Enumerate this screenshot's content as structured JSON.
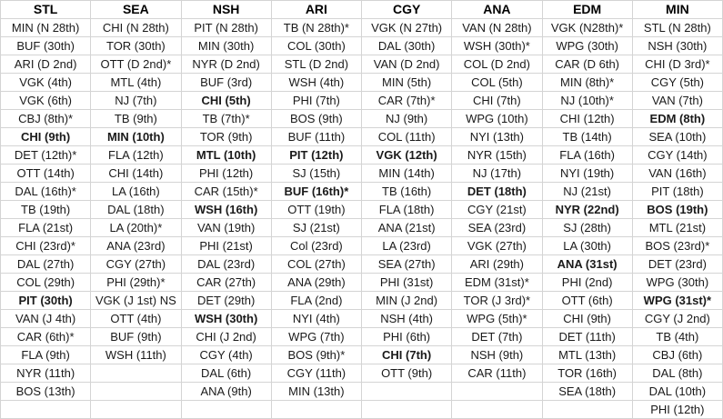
{
  "colors": {
    "red": "#f42a33",
    "green": "#1ea35d",
    "black_text": "#1a1a1a",
    "gridline": "#d4d4d4",
    "header_text": "#000000",
    "background": "#ffffff"
  },
  "table": {
    "columns": [
      {
        "header": "STL",
        "cells": [
          {
            "t": "MIN (N 28th)",
            "s": "r"
          },
          {
            "t": "BUF (30th)",
            "s": "k"
          },
          {
            "t": "ARI (D 2nd)",
            "s": "r"
          },
          {
            "t": "VGK (4th)",
            "s": "r"
          },
          {
            "t": "VGK (6th)",
            "s": "k"
          },
          {
            "t": "CBJ (8th)*",
            "s": "r"
          },
          {
            "t": "CHI (9th)",
            "s": "rb"
          },
          {
            "t": "DET (12th)*",
            "s": "k"
          },
          {
            "t": "OTT (14th)",
            "s": "k"
          },
          {
            "t": "DAL (16th)*",
            "s": "k"
          },
          {
            "t": "TB (19th)",
            "s": "r"
          },
          {
            "t": "FLA (21st)",
            "s": "r"
          },
          {
            "t": "CHI (23rd)*",
            "s": "k"
          },
          {
            "t": "DAL (27th)",
            "s": "k"
          },
          {
            "t": "COL (29th)",
            "s": "k"
          },
          {
            "t": "PIT (30th)",
            "s": "rb"
          },
          {
            "t": "VAN (J 4th)",
            "s": "k"
          },
          {
            "t": "CAR (6th)*",
            "s": "r"
          },
          {
            "t": "FLA (9th)",
            "s": "k"
          },
          {
            "t": "NYR (11th)",
            "s": "k"
          },
          {
            "t": "BOS (13th)",
            "s": "k"
          },
          {
            "t": "",
            "s": ""
          }
        ]
      },
      {
        "header": "SEA",
        "cells": [
          {
            "t": "CHI (N 28th)",
            "s": "r"
          },
          {
            "t": "TOR (30th)",
            "s": "r"
          },
          {
            "t": "OTT (D 2nd)*",
            "s": "r"
          },
          {
            "t": "MTL (4th)",
            "s": "r"
          },
          {
            "t": "NJ (7th)",
            "s": "k"
          },
          {
            "t": "TB (9th)",
            "s": "k"
          },
          {
            "t": "MIN (10th)",
            "s": "kb"
          },
          {
            "t": "FLA (12th)",
            "s": "k"
          },
          {
            "t": "CHI (14th)",
            "s": "k"
          },
          {
            "t": "LA (16th)",
            "s": "k"
          },
          {
            "t": "DAL (18th)",
            "s": "r"
          },
          {
            "t": "LA (20th)*",
            "s": "r"
          },
          {
            "t": "ANA (23rd)",
            "s": "r"
          },
          {
            "t": "CGY (27th)",
            "s": "r"
          },
          {
            "t": "PHI (29th)*",
            "s": "k"
          },
          {
            "t": "VGK (J 1st) NS",
            "s": "g"
          },
          {
            "t": "OTT (4th)",
            "s": "k"
          },
          {
            "t": "BUF (9th)",
            "s": "r"
          },
          {
            "t": "WSH (11th)",
            "s": "r"
          },
          {
            "t": "",
            "s": ""
          },
          {
            "t": "",
            "s": ""
          },
          {
            "t": "",
            "s": ""
          }
        ]
      },
      {
        "header": "NSH",
        "cells": [
          {
            "t": "PIT (N 28th)",
            "s": "k"
          },
          {
            "t": "MIN (30th)",
            "s": "k"
          },
          {
            "t": "NYR (D 2nd)",
            "s": "k"
          },
          {
            "t": "BUF (3rd)",
            "s": "r"
          },
          {
            "t": "CHI (5th)",
            "s": "rb"
          },
          {
            "t": "TB (7th)*",
            "s": "k"
          },
          {
            "t": "TOR (9th)",
            "s": "r"
          },
          {
            "t": "MTL (10th)",
            "s": "rb"
          },
          {
            "t": "PHI (12th)",
            "s": "k"
          },
          {
            "t": "CAR (15th)*",
            "s": "r"
          },
          {
            "t": "WSH (16th)",
            "s": "kb"
          },
          {
            "t": "VAN (19th)",
            "s": "k"
          },
          {
            "t": "PHI (21st)",
            "s": "r"
          },
          {
            "t": "DAL (23rd)",
            "s": "k"
          },
          {
            "t": "CAR (27th)",
            "s": "k"
          },
          {
            "t": "DET (29th)",
            "s": "r"
          },
          {
            "t": "WSH (30th)",
            "s": "rb"
          },
          {
            "t": "CHI (J 2nd)",
            "s": "k"
          },
          {
            "t": "CGY (4th)",
            "s": "k"
          },
          {
            "t": "DAL (6th)",
            "s": "r"
          },
          {
            "t": "ANA (9th)",
            "s": "k"
          },
          {
            "t": "",
            "s": ""
          }
        ]
      },
      {
        "header": "ARI",
        "cells": [
          {
            "t": "TB (N 28th)*",
            "s": "k"
          },
          {
            "t": "COL (30th)",
            "s": "k"
          },
          {
            "t": "STL (D 2nd)",
            "s": "k"
          },
          {
            "t": "WSH (4th)",
            "s": "k"
          },
          {
            "t": "PHI (7th)",
            "s": "k"
          },
          {
            "t": "BOS (9th)",
            "s": "r"
          },
          {
            "t": "BUF (11th)",
            "s": "r"
          },
          {
            "t": "PIT (12th)",
            "s": "rb"
          },
          {
            "t": "SJ (15th)",
            "s": "k"
          },
          {
            "t": "BUF (16th)*",
            "s": "kb"
          },
          {
            "t": "OTT (19th)",
            "s": "k"
          },
          {
            "t": "SJ (21st)",
            "s": "r"
          },
          {
            "t": "Col (23rd)",
            "s": "r"
          },
          {
            "t": "COL (27th)",
            "s": "k"
          },
          {
            "t": "ANA (29th)",
            "s": "r"
          },
          {
            "t": "FLA (2nd)",
            "s": "k"
          },
          {
            "t": "NYI (4th)",
            "s": "k"
          },
          {
            "t": "WPG (7th)",
            "s": "k"
          },
          {
            "t": "BOS (9th)*",
            "s": "k"
          },
          {
            "t": "CGY (11th)",
            "s": "k"
          },
          {
            "t": "MIN (13th)",
            "s": "r"
          },
          {
            "t": "",
            "s": ""
          }
        ]
      },
      {
        "header": "CGY",
        "cells": [
          {
            "t": "VGK (N 27th)",
            "s": "k"
          },
          {
            "t": "DAL (30th)",
            "s": "k"
          },
          {
            "t": "VAN (D 2nd)",
            "s": "k"
          },
          {
            "t": "MIN (5th)",
            "s": "k"
          },
          {
            "t": "CAR (7th)*",
            "s": "k"
          },
          {
            "t": "NJ (9th)",
            "s": "k"
          },
          {
            "t": "COL (11th)",
            "s": "r"
          },
          {
            "t": "VGK (12th)",
            "s": "rb"
          },
          {
            "t": "MIN (14th)",
            "s": "r"
          },
          {
            "t": "TB (16th)",
            "s": "k"
          },
          {
            "t": "FLA (18th)",
            "s": "k"
          },
          {
            "t": "ANA (21st)",
            "s": "r"
          },
          {
            "t": "LA (23rd)",
            "s": "r"
          },
          {
            "t": "SEA (27th)",
            "s": "k"
          },
          {
            "t": "PHI (31st)",
            "s": "k"
          },
          {
            "t": "MIN (J 2nd)",
            "s": "r"
          },
          {
            "t": "NSH (4th)",
            "s": "r"
          },
          {
            "t": "PHI (6th)",
            "s": "r"
          },
          {
            "t": "CHI (7th)",
            "s": "rb"
          },
          {
            "t": "OTT (9th)",
            "s": "k"
          },
          {
            "t": "",
            "s": ""
          },
          {
            "t": "",
            "s": ""
          }
        ]
      },
      {
        "header": "ANA",
        "cells": [
          {
            "t": "VAN (N 28th)",
            "s": "r"
          },
          {
            "t": "WSH (30th)*",
            "s": "k"
          },
          {
            "t": "COL (D 2nd)",
            "s": "k"
          },
          {
            "t": "COL (5th)",
            "s": "r"
          },
          {
            "t": "CHI (7th)",
            "s": "r"
          },
          {
            "t": "WPG (10th)",
            "s": "k"
          },
          {
            "t": "NYI (13th)",
            "s": "r"
          },
          {
            "t": "NYR (15th)",
            "s": "r"
          },
          {
            "t": "NJ (17th)",
            "s": "r"
          },
          {
            "t": "DET (18th)",
            "s": "rb"
          },
          {
            "t": "CGY (21st)",
            "s": "k"
          },
          {
            "t": "SEA (23rd)",
            "s": "k"
          },
          {
            "t": "VGK (27th)",
            "s": "k"
          },
          {
            "t": "ARI (29th)",
            "s": "k"
          },
          {
            "t": "EDM (31st)*",
            "s": "k"
          },
          {
            "t": "TOR (J 3rd)*",
            "s": "k"
          },
          {
            "t": "WPG (5th)*",
            "s": "k"
          },
          {
            "t": "DET (7th)",
            "s": "k"
          },
          {
            "t": "NSH (9th)",
            "s": "r"
          },
          {
            "t": "CAR (11th)",
            "s": "r"
          },
          {
            "t": "",
            "s": ""
          },
          {
            "t": "",
            "s": ""
          }
        ]
      },
      {
        "header": "EDM",
        "cells": [
          {
            "t": "VGK (N28th)*",
            "s": "k"
          },
          {
            "t": "WPG (30th)",
            "s": "r"
          },
          {
            "t": "CAR (D 6th)",
            "s": "k"
          },
          {
            "t": "MIN (8th)*",
            "s": "k"
          },
          {
            "t": "NJ (10th)*",
            "s": "k"
          },
          {
            "t": "CHI (12th)",
            "s": "k"
          },
          {
            "t": "TB (14th)",
            "s": "k"
          },
          {
            "t": "FLA (16th)",
            "s": "k"
          },
          {
            "t": "NYI (19th)",
            "s": "r"
          },
          {
            "t": "NJ (21st)",
            "s": "r"
          },
          {
            "t": "NYR (22nd)",
            "s": "rb"
          },
          {
            "t": "SJ (28th)",
            "s": "r"
          },
          {
            "t": "LA (30th)",
            "s": "r"
          },
          {
            "t": "ANA (31st)",
            "s": "rb"
          },
          {
            "t": "PHI (2nd)",
            "s": "k"
          },
          {
            "t": "OTT (6th)",
            "s": "k"
          },
          {
            "t": "CHI (9th)",
            "s": "r"
          },
          {
            "t": "DET (11th)",
            "s": "r"
          },
          {
            "t": "MTL (13th)",
            "s": "r"
          },
          {
            "t": "TOR (16th)",
            "s": "k"
          },
          {
            "t": "SEA (18th)",
            "s": "r"
          },
          {
            "t": "",
            "s": ""
          }
        ]
      },
      {
        "header": "MIN",
        "cells": [
          {
            "t": "STL (N 28th)",
            "s": "k"
          },
          {
            "t": "NSH (30th)",
            "s": "r"
          },
          {
            "t": "CHI (D 3rd)*",
            "s": "k"
          },
          {
            "t": "CGY (5th)",
            "s": "r"
          },
          {
            "t": "VAN (7th)",
            "s": "r"
          },
          {
            "t": "EDM (8th)",
            "s": "rb"
          },
          {
            "t": "SEA (10th)",
            "s": "r"
          },
          {
            "t": "CGY (14th)",
            "s": "k"
          },
          {
            "t": "VAN (16th)",
            "s": "k"
          },
          {
            "t": "PIT (18th)",
            "s": "r"
          },
          {
            "t": "BOS (19th)",
            "s": "rb"
          },
          {
            "t": "MTL (21st)",
            "s": "k"
          },
          {
            "t": "BOS (23rd)*",
            "s": "k"
          },
          {
            "t": "DET (23rd)",
            "s": "k"
          },
          {
            "t": "WPG (30th)",
            "s": "r"
          },
          {
            "t": "WPG (31st)*",
            "s": "kb"
          },
          {
            "t": "CGY (J 2nd)",
            "s": "k"
          },
          {
            "t": "TB (4th)",
            "s": "k"
          },
          {
            "t": "CBJ (6th)",
            "s": "r"
          },
          {
            "t": "DAL (8th)",
            "s": "k"
          },
          {
            "t": "DAL (10th)",
            "s": "r"
          },
          {
            "t": "PHI (12th)",
            "s": "k"
          }
        ]
      }
    ]
  }
}
